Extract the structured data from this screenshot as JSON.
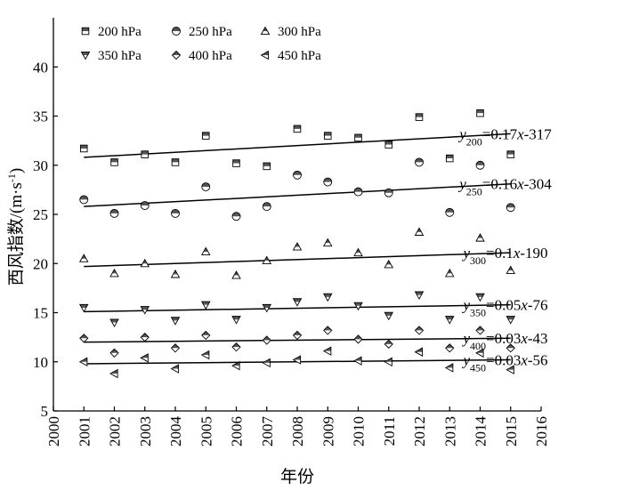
{
  "chart_data": {
    "type": "scatter",
    "title": "",
    "xlabel": "年份",
    "ylabel": "西风指数/(m·s⁻¹)",
    "xlim": [
      2000,
      2016
    ],
    "ylim": [
      5,
      45
    ],
    "x_ticks": [
      2000,
      2001,
      2002,
      2003,
      2004,
      2005,
      2006,
      2007,
      2008,
      2009,
      2010,
      2011,
      2012,
      2013,
      2014,
      2015,
      2016
    ],
    "y_ticks": [
      5,
      10,
      15,
      20,
      25,
      30,
      35,
      40
    ],
    "grid": false,
    "legend_position": "top-left",
    "x": [
      2001,
      2002,
      2003,
      2004,
      2005,
      2006,
      2007,
      2008,
      2009,
      2010,
      2011,
      2012,
      2013,
      2014,
      2015
    ],
    "series": [
      {
        "name": "200 hPa",
        "marker": "square",
        "values": [
          31.7,
          30.3,
          31.1,
          30.3,
          33.0,
          30.2,
          29.9,
          33.7,
          33.0,
          32.8,
          32.1,
          34.9,
          30.7,
          35.3,
          31.1
        ],
        "trend": {
          "subscript": "200",
          "rhs": "=0.17x-317",
          "start": [
            2001,
            30.8
          ],
          "end": [
            2015,
            33.2
          ]
        }
      },
      {
        "name": "250 hPa",
        "marker": "circle",
        "values": [
          26.5,
          25.1,
          25.9,
          25.1,
          27.8,
          24.8,
          25.8,
          29.0,
          28.3,
          27.3,
          27.2,
          30.3,
          25.2,
          30.0,
          25.7
        ],
        "trend": {
          "subscript": "250",
          "rhs": "=0.16x-304",
          "start": [
            2001,
            25.8
          ],
          "end": [
            2015,
            28.1
          ]
        }
      },
      {
        "name": "300 hPa",
        "marker": "triangle-up",
        "values": [
          20.5,
          19.0,
          20.0,
          18.9,
          21.2,
          18.8,
          20.3,
          21.7,
          22.1,
          21.1,
          19.9,
          23.2,
          19.0,
          22.6,
          19.3
        ],
        "trend": {
          "subscript": "300",
          "rhs": "=0.1x-190",
          "start": [
            2001,
            19.7
          ],
          "end": [
            2015,
            21.1
          ]
        }
      },
      {
        "name": "350 hPa",
        "marker": "triangle-down",
        "values": [
          15.5,
          14.0,
          15.3,
          14.2,
          15.8,
          14.3,
          15.5,
          16.1,
          16.6,
          15.7,
          14.7,
          16.8,
          14.3,
          16.6,
          14.3
        ],
        "trend": {
          "subscript": "350",
          "rhs": "=0.05x-76",
          "start": [
            2001,
            15.1
          ],
          "end": [
            2015,
            15.8
          ]
        }
      },
      {
        "name": "400 hPa",
        "marker": "diamond",
        "values": [
          12.4,
          10.9,
          12.5,
          11.4,
          12.7,
          11.5,
          12.2,
          12.7,
          13.2,
          12.3,
          11.8,
          13.2,
          11.4,
          13.2,
          11.4
        ],
        "trend": {
          "subscript": "400",
          "rhs": "=0.03x-43",
          "start": [
            2001,
            12.0
          ],
          "end": [
            2015,
            12.4
          ]
        }
      },
      {
        "name": "450 hPa",
        "marker": "triangle-left",
        "values": [
          10.0,
          8.8,
          10.4,
          9.3,
          10.7,
          9.6,
          9.9,
          10.2,
          11.1,
          10.1,
          10.0,
          11.0,
          9.4,
          10.9,
          9.2
        ],
        "trend": {
          "subscript": "450",
          "rhs": "=0.03x-56",
          "start": [
            2001,
            9.8
          ],
          "end": [
            2015,
            10.2
          ]
        }
      }
    ]
  }
}
